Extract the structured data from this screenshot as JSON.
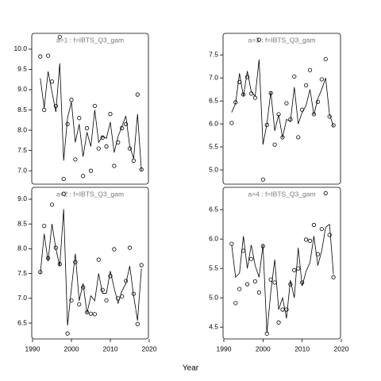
{
  "xlabel": "Year",
  "chart_data": [
    {
      "type": "line",
      "title": "a=1 : f=IBTS_Q3_gam",
      "x": [
        1992,
        1993,
        1994,
        1995,
        1996,
        1997,
        1998,
        1999,
        2000,
        2001,
        2002,
        2003,
        2004,
        2005,
        2006,
        2007,
        2008,
        2009,
        2010,
        2011,
        2012,
        2013,
        2014,
        2015,
        2016,
        2017,
        2018
      ],
      "xlim": [
        1989.8,
        2019.8
      ],
      "ylim": [
        6.67,
        10.39
      ],
      "yticks": [
        {
          "value": 7,
          "label": "7.0"
        },
        7.5,
        {
          "value": 8,
          "label": "8.0"
        },
        8.5,
        {
          "value": 9,
          "label": "9.0"
        },
        9.5,
        {
          "value": 10,
          "label": "10.0"
        }
      ],
      "series": [
        {
          "marker": "circle",
          "color": "#000000",
          "values": [
            9.82,
            8.5,
            9.84,
            9.2,
            8.6,
            10.3,
            6.8,
            8.15,
            8.75,
            7.28,
            8.3,
            6.87,
            8.05,
            7.0,
            8.6,
            7.55,
            7.82,
            7.6,
            8.4,
            7.12,
            7.7,
            8.05,
            8.15,
            7.55,
            7.25,
            8.88,
            7.03
          ]
        },
        {
          "marker": "none",
          "color": "#000000",
          "values": [
            9.28,
            8.55,
            9.45,
            8.95,
            8.45,
            9.65,
            7.25,
            8.3,
            8.7,
            7.7,
            8.15,
            7.35,
            7.95,
            7.6,
            8.5,
            7.7,
            7.85,
            7.8,
            8.2,
            7.45,
            7.85,
            8.1,
            8.35,
            7.6,
            7.3,
            8.4,
            7.0
          ]
        }
      ]
    },
    {
      "type": "line",
      "title": "a=3 : f=IBTS_Q3_gam",
      "x": [
        1992,
        1993,
        1994,
        1995,
        1996,
        1997,
        1998,
        1999,
        2000,
        2001,
        2002,
        2003,
        2004,
        2005,
        2006,
        2007,
        2008,
        2009,
        2010,
        2011,
        2012,
        2013,
        2014,
        2015,
        2016,
        2017,
        2018
      ],
      "xlim": [
        1989.8,
        2019.8
      ],
      "ylim": [
        4.69,
        7.97
      ],
      "yticks": [
        {
          "value": 5,
          "label": "5.0"
        },
        5.5,
        {
          "value": 6,
          "label": "6.0"
        },
        6.5,
        {
          "value": 7,
          "label": "7.0"
        },
        7.5
      ],
      "series": [
        {
          "marker": "circle",
          "color": "#000000",
          "values": [
            6.02,
            6.47,
            6.91,
            6.64,
            7.02,
            6.66,
            6.57,
            7.83,
            4.79,
            5.98,
            6.67,
            5.55,
            6.21,
            5.71,
            6.45,
            6.1,
            7.03,
            5.71,
            6.31,
            6.84,
            7.17,
            6.21,
            6.48,
            6.97,
            7.41,
            6.16,
            5.97
          ]
        },
        {
          "marker": "none",
          "color": "#000000",
          "values": [
            6.25,
            6.45,
            7.1,
            6.6,
            7.15,
            6.7,
            6.6,
            7.4,
            5.55,
            6.0,
            6.7,
            5.85,
            6.2,
            5.7,
            6.1,
            6.05,
            6.8,
            6.0,
            6.25,
            6.4,
            6.75,
            6.2,
            6.55,
            6.75,
            7.0,
            6.2,
            5.95
          ]
        }
      ]
    },
    {
      "type": "line",
      "title": "a=2 : f=IBTS_Q3_gam",
      "x": [
        1992,
        1993,
        1994,
        1995,
        1996,
        1997,
        1998,
        1999,
        2000,
        2001,
        2002,
        2003,
        2004,
        2005,
        2006,
        2007,
        2008,
        2009,
        2010,
        2011,
        2012,
        2013,
        2014,
        2015,
        2016,
        2017,
        2018
      ],
      "xlim": [
        1989.8,
        2019.8
      ],
      "xticks": [
        1990,
        2000,
        2010,
        2020
      ],
      "ylim": [
        6.18,
        9.24
      ],
      "yticks": [
        6.5,
        {
          "value": 7,
          "label": "7.0"
        },
        7.5,
        {
          "value": 8,
          "label": "8.0"
        },
        8.5,
        {
          "value": 9,
          "label": "9.0"
        }
      ],
      "series": [
        {
          "marker": "circle",
          "color": "#000000",
          "values": [
            7.53,
            8.46,
            7.81,
            8.89,
            8.02,
            7.69,
            9.11,
            6.29,
            6.96,
            7.73,
            6.88,
            7.22,
            6.72,
            6.69,
            6.68,
            7.78,
            7.17,
            6.96,
            7.45,
            7.99,
            7.0,
            7.04,
            7.35,
            8.02,
            7.09,
            6.48,
            7.67
          ]
        },
        {
          "marker": "none",
          "color": "#000000",
          "values": [
            7.5,
            8.3,
            7.75,
            8.5,
            8.0,
            7.65,
            8.8,
            6.45,
            7.2,
            7.9,
            6.95,
            7.3,
            6.7,
            7.05,
            6.95,
            7.5,
            7.1,
            7.1,
            7.55,
            7.2,
            6.9,
            7.15,
            7.3,
            7.65,
            7.05,
            6.55,
            7.6
          ]
        }
      ]
    },
    {
      "type": "line",
      "title": "a=4 : f=IBTS_Q3_gam",
      "x": [
        1992,
        1993,
        1994,
        1995,
        1996,
        1997,
        1998,
        1999,
        2000,
        2001,
        2002,
        2003,
        2004,
        2005,
        2006,
        2007,
        2008,
        2009,
        2010,
        2011,
        2012,
        2013,
        2014,
        2015,
        2016,
        2017,
        2018
      ],
      "xlim": [
        1989.8,
        2019.8
      ],
      "xticks": [
        1990,
        2000,
        2010,
        2020
      ],
      "ylim": [
        4.3,
        6.88
      ],
      "yticks": [
        4.5,
        {
          "value": 5,
          "label": "5.0"
        },
        5.5,
        {
          "value": 6,
          "label": "6.0"
        },
        6.5
      ],
      "series": [
        {
          "marker": "circle",
          "color": "#000000",
          "values": [
            5.92,
            4.91,
            5.15,
            5.8,
            5.23,
            5.66,
            5.28,
            5.09,
            5.88,
            4.39,
            5.31,
            5.26,
            4.58,
            4.8,
            4.8,
            5.23,
            5.47,
            5.5,
            5.26,
            5.99,
            5.97,
            6.24,
            5.74,
            6.17,
            6.78,
            6.07,
            5.35
          ]
        },
        {
          "marker": "none",
          "color": "#000000",
          "values": [
            5.9,
            5.35,
            5.42,
            6.05,
            5.5,
            5.9,
            5.55,
            5.35,
            5.9,
            4.4,
            5.1,
            5.65,
            4.8,
            5.0,
            4.65,
            5.3,
            5.0,
            5.85,
            5.2,
            5.45,
            5.6,
            6.05,
            5.55,
            5.8,
            6.2,
            6.25,
            5.4
          ]
        }
      ]
    }
  ]
}
